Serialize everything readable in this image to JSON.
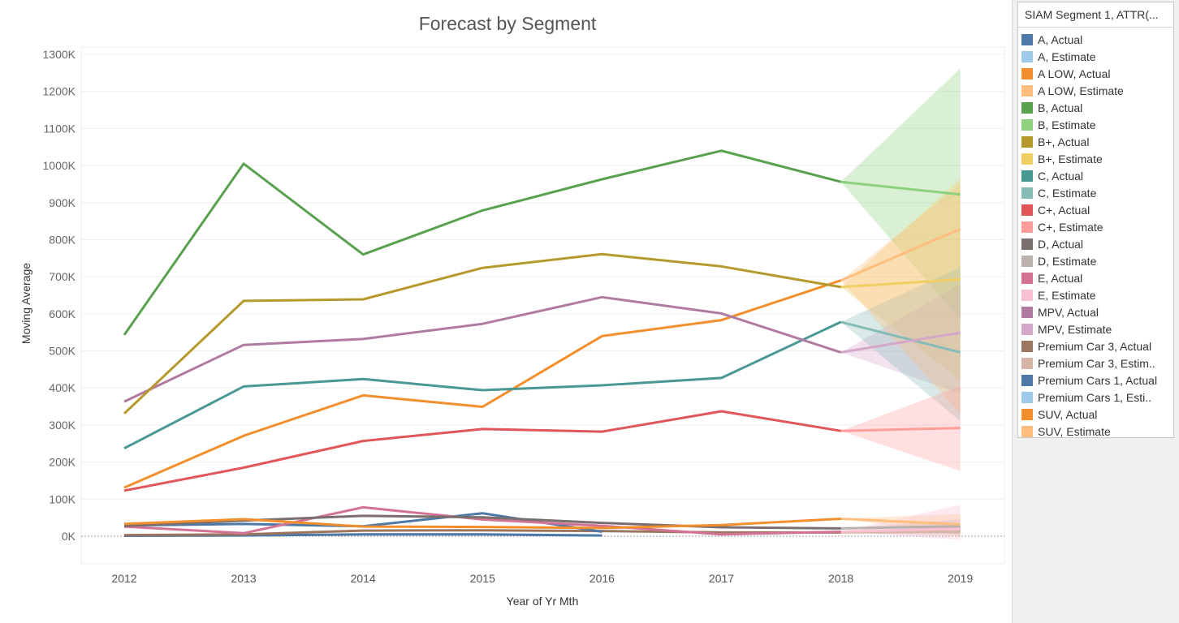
{
  "chart_data": {
    "type": "line",
    "title": "Forecast by Segment",
    "xlabel": "Year of Yr Mth",
    "ylabel": "Moving Average",
    "categories": [
      "2012",
      "2013",
      "2014",
      "2015",
      "2016",
      "2017",
      "2018",
      "2019"
    ],
    "ylim": [
      0,
      1300000
    ],
    "yticks": [
      "0K",
      "100K",
      "200K",
      "300K",
      "400K",
      "500K",
      "600K",
      "700K",
      "800K",
      "900K",
      "1000K",
      "1100K",
      "1200K",
      "1300K"
    ],
    "grid": true,
    "legend": {
      "title": "SIAM Segment 1, ATTR(...",
      "placement": "right"
    },
    "series": [
      {
        "name": "B, Actual",
        "color": "#59a14f",
        "values": [
          543000,
          1005000,
          760000,
          879000,
          963000,
          1040000,
          956000,
          null
        ]
      },
      {
        "name": "B, Estimate",
        "color": "#8cd17d",
        "values": [
          null,
          null,
          null,
          null,
          null,
          null,
          956000,
          922000
        ],
        "band_2019": [
          585000,
          1262000
        ]
      },
      {
        "name": "B+, Actual",
        "color": "#b6992d",
        "values": [
          331000,
          635000,
          639000,
          724000,
          761000,
          728000,
          672000,
          null
        ]
      },
      {
        "name": "B+, Estimate",
        "color": "#f1ce63",
        "values": [
          null,
          null,
          null,
          null,
          null,
          null,
          672000,
          693000
        ],
        "band_2019": [
          420000,
          965000
        ]
      },
      {
        "name": "MPV, Actual",
        "color": "#b07aa1",
        "values": [
          363000,
          516000,
          532000,
          573000,
          645000,
          601000,
          496000,
          null
        ]
      },
      {
        "name": "MPV, Estimate",
        "color": "#d4a6c8",
        "values": [
          null,
          null,
          null,
          null,
          null,
          null,
          496000,
          549000
        ],
        "band_2019": [
          385000,
          680000
        ]
      },
      {
        "name": "C, Actual",
        "color": "#499894",
        "values": [
          237000,
          404000,
          424000,
          394000,
          407000,
          427000,
          578000,
          null
        ]
      },
      {
        "name": "C, Estimate",
        "color": "#86bcb6",
        "values": [
          null,
          null,
          null,
          null,
          null,
          null,
          578000,
          496000
        ],
        "band_2019": [
          310000,
          725000
        ]
      },
      {
        "name": "SUV, Actual",
        "color": "#f28e2b",
        "values": [
          131000,
          271000,
          380000,
          349000,
          540000,
          583000,
          690000,
          null
        ]
      },
      {
        "name": "SUV, Estimate",
        "color": "#ffbe7d",
        "values": [
          null,
          null,
          null,
          null,
          null,
          null,
          690000,
          829000
        ],
        "band_2019": [
          330000,
          950000
        ]
      },
      {
        "name": "C+, Actual",
        "color": "#e15759",
        "values": [
          123000,
          185000,
          257000,
          289000,
          282000,
          337000,
          284000,
          null
        ]
      },
      {
        "name": "C+, Estimate",
        "color": "#ff9d9a",
        "values": [
          null,
          null,
          null,
          null,
          null,
          null,
          284000,
          292000
        ],
        "band_2019": [
          176000,
          405000
        ]
      },
      {
        "name": "A LOW, Actual",
        "color": "#f28e2b",
        "values": [
          33000,
          46000,
          26000,
          25000,
          22000,
          30000,
          47000,
          null
        ]
      },
      {
        "name": "A LOW, Estimate",
        "color": "#ffbe7d",
        "values": [
          null,
          null,
          null,
          null,
          null,
          null,
          47000,
          32000
        ],
        "band_2019": [
          5000,
          60000
        ]
      },
      {
        "name": "D, Actual",
        "color": "#79706e",
        "values": [
          28000,
          42000,
          55000,
          51000,
          36000,
          24000,
          21000,
          null
        ]
      },
      {
        "name": "D, Estimate",
        "color": "#bab0ac",
        "values": [
          null,
          null,
          null,
          null,
          null,
          null,
          21000,
          27000
        ],
        "band_2019": [
          5000,
          45000
        ]
      },
      {
        "name": "E, Actual",
        "color": "#d37295",
        "values": [
          26000,
          8000,
          78000,
          45000,
          28000,
          5000,
          12000,
          null
        ]
      },
      {
        "name": "E, Estimate",
        "color": "#fabfd2",
        "values": [
          null,
          null,
          null,
          null,
          null,
          null,
          12000,
          20000
        ],
        "band_2019": [
          -10000,
          85000
        ]
      },
      {
        "name": "Premium Cars 1, Actual",
        "color": "#4e79a7",
        "values": [
          29000,
          33000,
          27000,
          62000,
          12000,
          null,
          null,
          null
        ]
      },
      {
        "name": "Premium Car 3, Actual",
        "color": "#9c755f",
        "values": [
          3000,
          5000,
          15000,
          16000,
          14000,
          10000,
          10000,
          null
        ]
      },
      {
        "name": "Premium Car 3, Estimate",
        "color": "#d7b5a6",
        "values": [
          null,
          null,
          null,
          null,
          null,
          null,
          10000,
          12000
        ],
        "band_2019": [
          0,
          30000
        ]
      },
      {
        "name": "A, Actual",
        "color": "#4e79a7",
        "values": [
          1000,
          2000,
          5000,
          5000,
          2000,
          null,
          null,
          null
        ]
      },
      {
        "name": "A, Estimate",
        "color": "#a0cbe8",
        "values": [
          null,
          null,
          null,
          null,
          null,
          null,
          null,
          null
        ]
      },
      {
        "name": "Premium Cars 1, Estimate",
        "color": "#a0cbe8",
        "values": [
          null,
          null,
          null,
          null,
          null,
          null,
          null,
          null
        ]
      }
    ]
  },
  "legend_items": [
    {
      "label": "A, Actual",
      "color": "#4e79a7"
    },
    {
      "label": "A, Estimate",
      "color": "#a0cbe8"
    },
    {
      "label": "A LOW, Actual",
      "color": "#f28e2b"
    },
    {
      "label": "A LOW, Estimate",
      "color": "#ffbe7d"
    },
    {
      "label": "B, Actual",
      "color": "#59a14f"
    },
    {
      "label": "B, Estimate",
      "color": "#8cd17d"
    },
    {
      "label": "B+, Actual",
      "color": "#b6992d"
    },
    {
      "label": "B+, Estimate",
      "color": "#f1ce63"
    },
    {
      "label": "C, Actual",
      "color": "#499894"
    },
    {
      "label": "C, Estimate",
      "color": "#86bcb6"
    },
    {
      "label": "C+, Actual",
      "color": "#e15759"
    },
    {
      "label": "C+, Estimate",
      "color": "#ff9d9a"
    },
    {
      "label": "D, Actual",
      "color": "#79706e"
    },
    {
      "label": "D, Estimate",
      "color": "#bab0ac"
    },
    {
      "label": "E, Actual",
      "color": "#d37295"
    },
    {
      "label": "E, Estimate",
      "color": "#fabfd2"
    },
    {
      "label": "MPV, Actual",
      "color": "#b07aa1"
    },
    {
      "label": "MPV, Estimate",
      "color": "#d4a6c8"
    },
    {
      "label": "Premium Car 3, Actual",
      "color": "#9d7660"
    },
    {
      "label": "Premium Car 3, Estim..",
      "color": "#d7b5a6"
    },
    {
      "label": "Premium Cars 1, Actual",
      "color": "#4e79a7"
    },
    {
      "label": "Premium Cars 1, Esti..",
      "color": "#a0cbe8"
    },
    {
      "label": "SUV, Actual",
      "color": "#f28e2b"
    },
    {
      "label": "SUV, Estimate",
      "color": "#ffbe7d"
    }
  ]
}
